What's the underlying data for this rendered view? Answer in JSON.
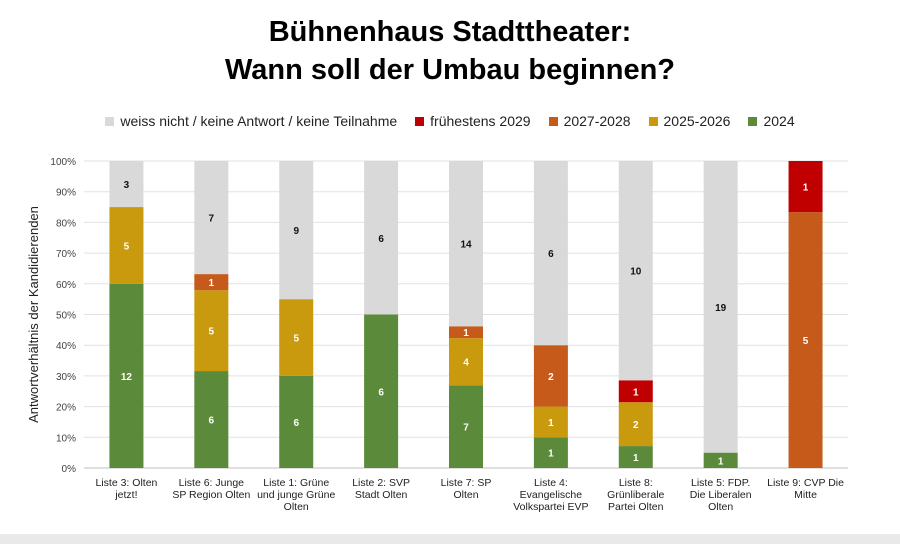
{
  "chart_data": {
    "type": "bar",
    "stacked": true,
    "percent": true,
    "title": [
      "Bühnenhaus Stadttheater:",
      "Wann soll der Umbau beginnen?"
    ],
    "ylabel": "Antwortverhältnis der Kandidierenden",
    "xlabel": "",
    "ylim": [
      0,
      100
    ],
    "yticks": [
      "0%",
      "10%",
      "20%",
      "30%",
      "40%",
      "50%",
      "60%",
      "70%",
      "80%",
      "90%",
      "100%"
    ],
    "grid": true,
    "legend_position": "top",
    "categories": [
      [
        "Liste 3: Olten",
        "jetzt!"
      ],
      [
        "Liste 6: Junge",
        "SP Region Olten"
      ],
      [
        "Liste 1: Grüne",
        "und junge Grüne",
        "Olten"
      ],
      [
        "Liste 2: SVP",
        "Stadt Olten"
      ],
      [
        "Liste 7: SP",
        "Olten"
      ],
      [
        "Liste 4:",
        "Evangelische",
        "Volkspartei EVP"
      ],
      [
        "Liste 8:",
        "Grünliberale",
        "Partei Olten"
      ],
      [
        "Liste 5: FDP.",
        "Die Liberalen",
        "Olten"
      ],
      [
        "Liste 9: CVP Die",
        "Mitte"
      ]
    ],
    "series": [
      {
        "name": "2024",
        "color": "#5b8a3a",
        "values": [
          12,
          6,
          6,
          6,
          7,
          1,
          1,
          1,
          0
        ]
      },
      {
        "name": "2025-2026",
        "color": "#c99a0e",
        "values": [
          5,
          5,
          5,
          0,
          4,
          1,
          2,
          0,
          0
        ]
      },
      {
        "name": "2027-2028",
        "color": "#c55a1a",
        "values": [
          0,
          1,
          0,
          0,
          1,
          2,
          0,
          0,
          5
        ]
      },
      {
        "name": "frühestens 2029",
        "color": "#c00000",
        "values": [
          0,
          0,
          0,
          0,
          0,
          0,
          1,
          0,
          1
        ]
      },
      {
        "name": "weiss nicht / keine Antwort / keine Teilnahme",
        "color": "#d9d9d9",
        "values": [
          3,
          7,
          9,
          6,
          14,
          6,
          10,
          19,
          0
        ]
      }
    ],
    "legend_order": [
      "weiss nicht / keine Antwort / keine Teilnahme",
      "frühestens 2029",
      "2027-2028",
      "2025-2026",
      "2024"
    ]
  }
}
